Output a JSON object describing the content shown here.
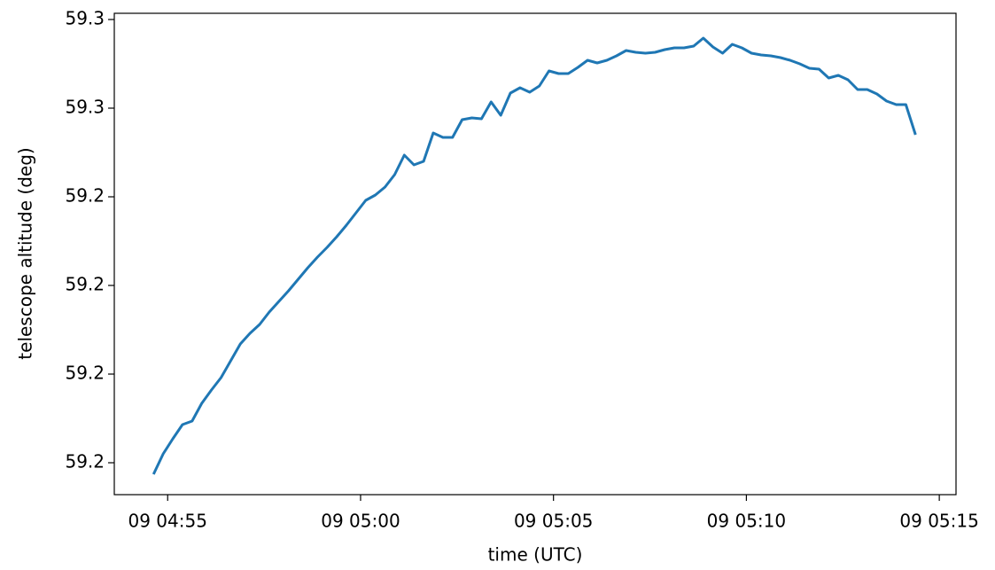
{
  "chart_data": {
    "type": "line",
    "xlabel": "time (UTC)",
    "ylabel": "telescope altitude (deg)",
    "x": [
      "09 04:54:38",
      "09 04:54:53",
      "09 04:55:08",
      "09 04:55:23",
      "09 04:55:38",
      "09 04:55:53",
      "09 04:56:08",
      "09 04:56:23",
      "09 04:56:38",
      "09 04:56:53",
      "09 04:57:08",
      "09 04:57:23",
      "09 04:57:38",
      "09 04:57:53",
      "09 04:58:08",
      "09 04:58:23",
      "09 04:58:38",
      "09 04:58:53",
      "09 04:59:08",
      "09 04:59:23",
      "09 04:59:38",
      "09 04:59:53",
      "09 05:00:08",
      "09 05:00:23",
      "09 05:00:38",
      "09 05:00:53",
      "09 05:01:08",
      "09 05:01:23",
      "09 05:01:38",
      "09 05:01:53",
      "09 05:02:08",
      "09 05:02:23",
      "09 05:02:38",
      "09 05:02:53",
      "09 05:03:08",
      "09 05:03:23",
      "09 05:03:38",
      "09 05:03:53",
      "09 05:04:08",
      "09 05:04:23",
      "09 05:04:38",
      "09 05:04:53",
      "09 05:05:08",
      "09 05:05:23",
      "09 05:05:38",
      "09 05:05:53",
      "09 05:06:08",
      "09 05:06:23",
      "09 05:06:38",
      "09 05:06:53",
      "09 05:07:08",
      "09 05:07:23",
      "09 05:07:38",
      "09 05:07:53",
      "09 05:08:08",
      "09 05:08:23",
      "09 05:08:38",
      "09 05:08:53",
      "09 05:09:08",
      "09 05:09:23",
      "09 05:09:38",
      "09 05:09:53",
      "09 05:10:08",
      "09 05:10:23",
      "09 05:10:38",
      "09 05:10:53",
      "09 05:11:08",
      "09 05:11:23",
      "09 05:11:38",
      "09 05:11:53",
      "09 05:12:08",
      "09 05:12:23",
      "09 05:12:38",
      "09 05:12:53",
      "09 05:13:08",
      "09 05:13:23",
      "09 05:13:38",
      "09 05:13:53",
      "09 05:14:08",
      "09 05:14:23"
    ],
    "series": [
      {
        "color": "#1f77b4",
        "values": [
          59.1774,
          59.182,
          59.1854,
          59.1886,
          59.1894,
          59.1934,
          59.1964,
          59.1992,
          59.203,
          59.2068,
          59.2092,
          59.2112,
          59.214,
          59.2164,
          59.2188,
          59.2214,
          59.224,
          59.2264,
          59.2286,
          59.231,
          59.2336,
          59.2364,
          59.2392,
          59.2404,
          59.2422,
          59.245,
          59.2494,
          59.2472,
          59.248,
          59.2544,
          59.2534,
          59.2534,
          59.2574,
          59.2578,
          59.2576,
          59.2614,
          59.2584,
          59.2634,
          59.2646,
          59.2636,
          59.265,
          59.2684,
          59.2678,
          59.2678,
          59.2692,
          59.2708,
          59.2702,
          59.2708,
          59.2718,
          59.273,
          59.2726,
          59.2724,
          59.2726,
          59.2732,
          59.2736,
          59.2736,
          59.274,
          59.2758,
          59.2738,
          59.2724,
          59.2744,
          59.2736,
          59.2724,
          59.272,
          59.2718,
          59.2714,
          59.2708,
          59.27,
          59.269,
          59.2688,
          59.2668,
          59.2674,
          59.2664,
          59.2642,
          59.2642,
          59.2632,
          59.2616,
          59.2608,
          59.2608,
          59.254
        ]
      }
    ],
    "xlim": [
      "09 04:53:37",
      "09 05:15:26"
    ],
    "xticks": [
      "09 04:55",
      "09 05:00",
      "09 05:05",
      "09 05:10",
      "09 05:15"
    ],
    "ylim": [
      59.1728,
      59.2814
    ],
    "yticks": [
      {
        "value": 59.18,
        "label": "59.2"
      },
      {
        "value": 59.2,
        "label": "59.2"
      },
      {
        "value": 59.22,
        "label": "59.2"
      },
      {
        "value": 59.24,
        "label": "59.2"
      },
      {
        "value": 59.26,
        "label": "59.3"
      },
      {
        "value": 59.28,
        "label": "59.3"
      }
    ],
    "grid": false
  }
}
